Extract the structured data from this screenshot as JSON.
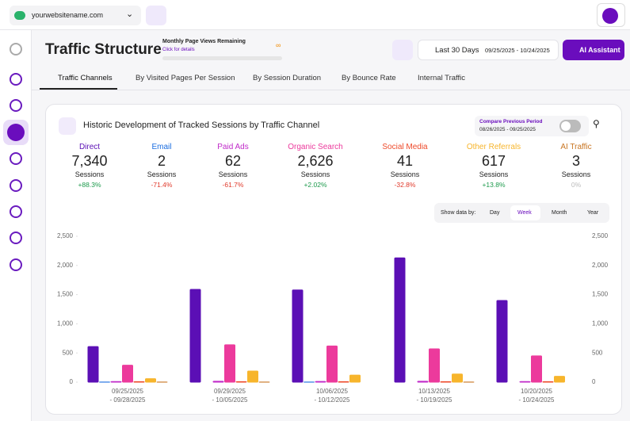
{
  "header": {
    "site": "yourwebsitename.com"
  },
  "page": {
    "title": "Traffic Structure",
    "quota_title": "Monthly Page Views Remaining",
    "quota_link": "Click for details",
    "quota_value": "∞",
    "period": "Last 30 Days",
    "date_range": "09/25/2025 - 10/24/2025",
    "assistant": "AI Assistant"
  },
  "tabs": [
    "Traffic Channels",
    "By Visited Pages Per Session",
    "By Session Duration",
    "By Bounce Rate",
    "Internal Traffic"
  ],
  "card": {
    "title": "Historic Development of Tracked Sessions by Traffic Channel",
    "compare_label": "Compare Previous Period",
    "compare_range": "08/26/2025 - 09/25/2025",
    "stats": [
      {
        "value": "7,340",
        "unit": "Sessions",
        "change": "+88.3%"
      },
      {
        "value": "2",
        "unit": "Sessions",
        "change": "-71.4%"
      },
      {
        "value": "62",
        "unit": "Sessions",
        "change": "-61.7%"
      },
      {
        "value": "2,626",
        "unit": "Sessions",
        "change": "+2.02%"
      },
      {
        "value": "41",
        "unit": "Sessions",
        "change": "-32.8%"
      },
      {
        "value": "617",
        "unit": "Sessions",
        "change": "+13.8%"
      },
      {
        "value": "3",
        "unit": "Sessions",
        "change": "0%"
      }
    ],
    "granularity_label": "Show data by:",
    "granularity": [
      "Day",
      "Week",
      "Month",
      "Year"
    ]
  },
  "chart_data": {
    "type": "bar",
    "categories": [
      [
        "09/25/2025",
        "- 09/28/2025"
      ],
      [
        "09/29/2025",
        "- 10/05/2025"
      ],
      [
        "10/06/2025",
        "- 10/12/2025"
      ],
      [
        "10/13/2025",
        "- 10/19/2025"
      ],
      [
        "10/20/2025",
        "- 10/24/2025"
      ]
    ],
    "series": [
      {
        "name": "Direct",
        "color": "#5b0fb5",
        "values": [
          610,
          1590,
          1580,
          2130,
          1400
        ]
      },
      {
        "name": "Email",
        "color": "#1a6de0",
        "values": [
          1,
          0,
          1,
          0,
          0
        ]
      },
      {
        "name": "Paid Ads",
        "color": "#c02ac9",
        "values": [
          10,
          15,
          12,
          15,
          10
        ]
      },
      {
        "name": "Organic Search",
        "color": "#ec3a9c",
        "values": [
          290,
          640,
          620,
          570,
          450
        ]
      },
      {
        "name": "Social Media",
        "color": "#ee4a2a",
        "values": [
          8,
          9,
          8,
          8,
          8
        ]
      },
      {
        "name": "Other Referrals",
        "color": "#f7b52c",
        "values": [
          60,
          190,
          120,
          140,
          100
        ]
      },
      {
        "name": "AI Traffic",
        "color": "#c87522",
        "values": [
          1,
          1,
          0,
          1,
          0
        ]
      }
    ],
    "ylim": [
      0,
      2500
    ],
    "yticks": [
      0,
      500,
      {
        "value": 1000,
        "label": "1,000"
      },
      {
        "value": 1500,
        "label": "1,500"
      },
      {
        "value": 2000,
        "label": "2,000"
      },
      {
        "value": 2500,
        "label": "2,500"
      }
    ],
    "grid": false
  }
}
